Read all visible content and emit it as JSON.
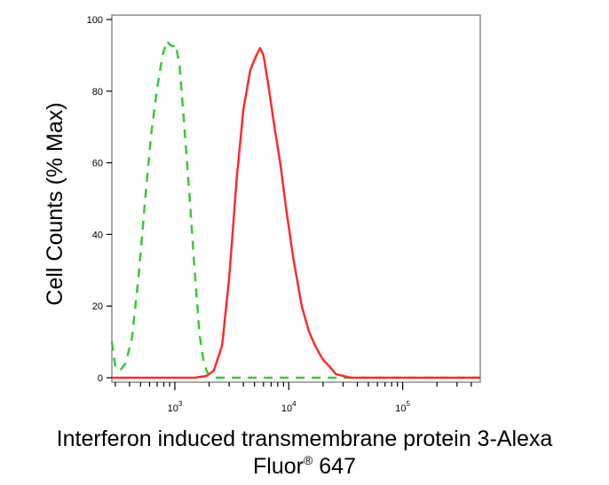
{
  "chart_data": {
    "type": "line",
    "xlabel": "Interferon induced transmembrane protein 3-Alexa",
    "xlabel_line2": {
      "base": "Fluor",
      "sup": "®",
      "rest": " 647"
    },
    "ylabel": "Cell Counts (% Max)",
    "x_scale": "log",
    "xlim": [
      280,
      480000
    ],
    "ylim": [
      0,
      100
    ],
    "y_ticks": [
      0,
      20,
      40,
      60,
      80,
      100
    ],
    "x_ticks": [
      {
        "value": 1000,
        "base": "10",
        "exp": "3"
      },
      {
        "value": 10000,
        "base": "10",
        "exp": "4"
      },
      {
        "value": 100000,
        "base": "10",
        "exp": "5"
      }
    ],
    "grid": false,
    "legend": "none",
    "series": [
      {
        "style": "dashed",
        "color": "#33cc33",
        "points": [
          [
            280,
            10
          ],
          [
            300,
            3
          ],
          [
            330,
            2
          ],
          [
            370,
            4
          ],
          [
            420,
            11
          ],
          [
            480,
            28
          ],
          [
            550,
            50
          ],
          [
            620,
            68
          ],
          [
            700,
            81
          ],
          [
            780,
            90
          ],
          [
            850,
            94
          ],
          [
            900,
            93
          ],
          [
            960,
            92.5
          ],
          [
            1020,
            93
          ],
          [
            1100,
            87
          ],
          [
            1200,
            72
          ],
          [
            1350,
            50
          ],
          [
            1500,
            29
          ],
          [
            1650,
            12
          ],
          [
            1800,
            4
          ],
          [
            1950,
            1
          ],
          [
            2200,
            0
          ],
          [
            480000,
            0
          ]
        ]
      },
      {
        "style": "solid",
        "color": "#ff2a2a",
        "points": [
          [
            280,
            0
          ],
          [
            1500,
            0
          ],
          [
            1900,
            0.5
          ],
          [
            2200,
            2
          ],
          [
            2600,
            9
          ],
          [
            3000,
            28
          ],
          [
            3500,
            56
          ],
          [
            4000,
            75
          ],
          [
            4600,
            86
          ],
          [
            5200,
            90
          ],
          [
            5600,
            92
          ],
          [
            6000,
            90
          ],
          [
            6600,
            82
          ],
          [
            7500,
            70
          ],
          [
            8500,
            59
          ],
          [
            9500,
            47
          ],
          [
            11000,
            33
          ],
          [
            13000,
            20
          ],
          [
            15000,
            13
          ],
          [
            17000,
            9
          ],
          [
            20000,
            5
          ],
          [
            23000,
            3
          ],
          [
            26000,
            1
          ],
          [
            30000,
            0.5
          ],
          [
            35000,
            0
          ],
          [
            480000,
            0
          ]
        ]
      }
    ]
  }
}
